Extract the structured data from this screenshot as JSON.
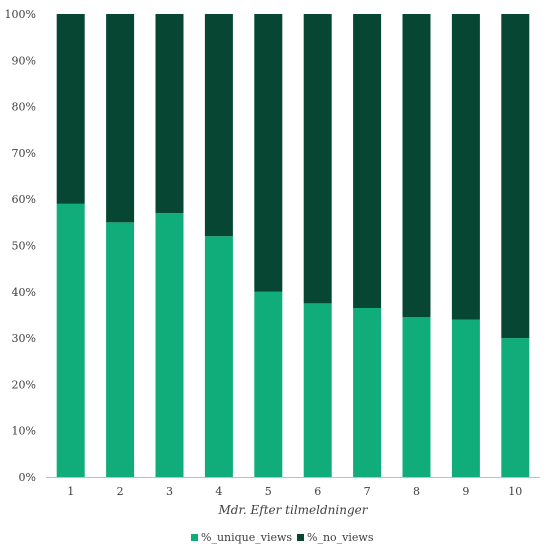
{
  "chart_data": {
    "type": "bar",
    "stacked": true,
    "percent_axis": true,
    "xlabel": "Mdr. Efter tilmeldninger",
    "ylabel": "",
    "ylim": [
      0,
      100
    ],
    "y_ticks": [
      "0%",
      "10%",
      "20%",
      "30%",
      "40%",
      "50%",
      "60%",
      "70%",
      "80%",
      "90%",
      "100%"
    ],
    "categories": [
      "1",
      "2",
      "3",
      "4",
      "5",
      "6",
      "7",
      "8",
      "9",
      "10"
    ],
    "series": [
      {
        "name": "%_unique_views",
        "color": "#10ad7a",
        "values": [
          59,
          55,
          57,
          52,
          40,
          37.5,
          36.5,
          34.5,
          34,
          30
        ]
      },
      {
        "name": "%_no_views",
        "color": "#064632",
        "values": [
          41,
          45,
          43,
          48,
          60,
          62.5,
          63.5,
          65.5,
          66,
          70
        ]
      }
    ],
    "grid": false,
    "legend_position": "bottom"
  }
}
